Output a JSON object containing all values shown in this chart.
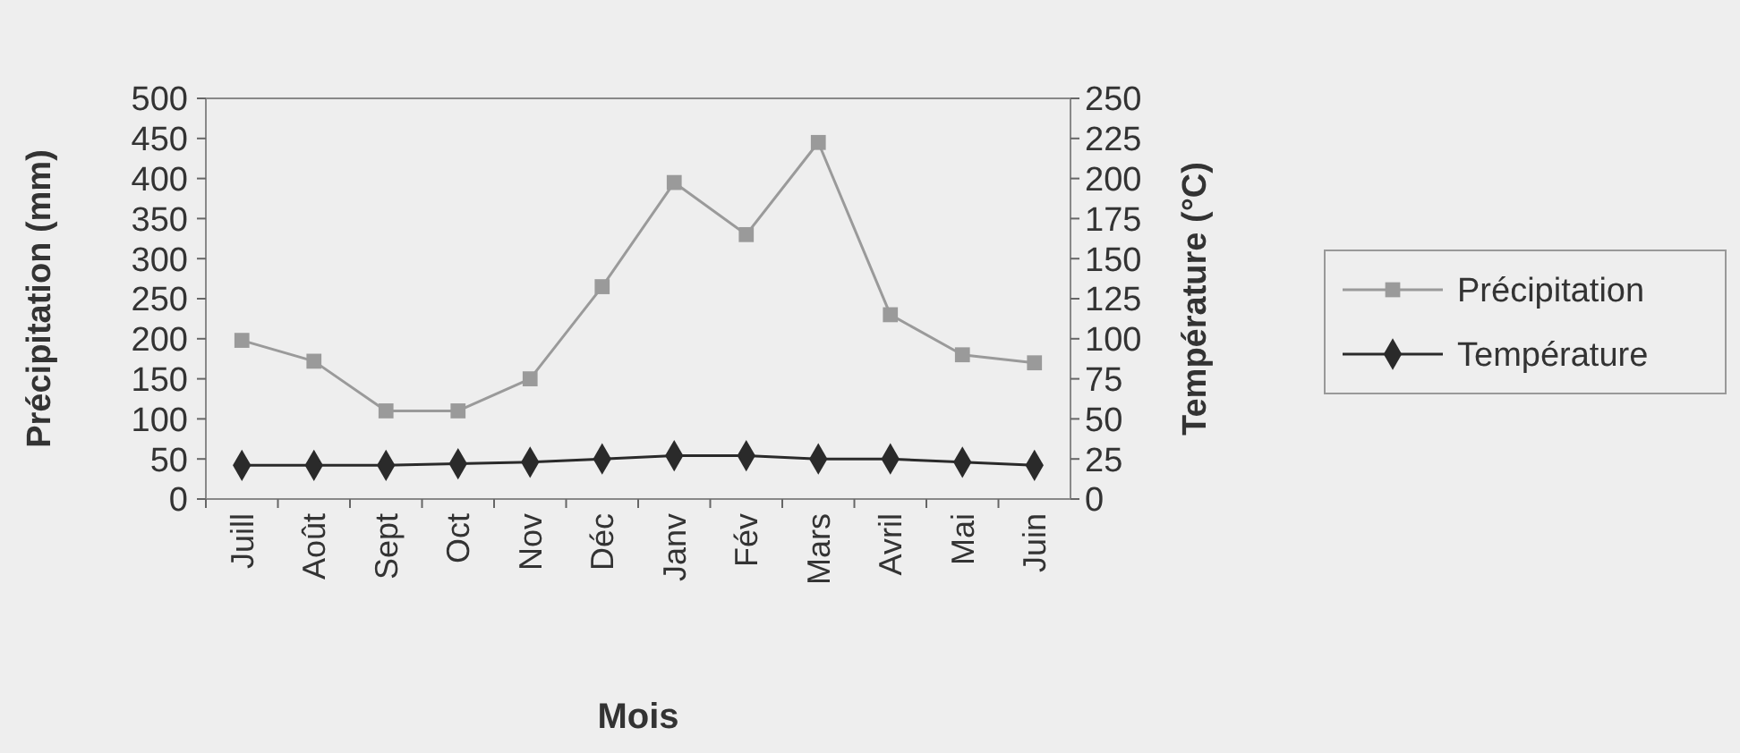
{
  "chart_data": {
    "type": "line",
    "xlabel": "Mois",
    "ylabel": "Précipitation (mm)",
    "y2label": "Température (°C)",
    "categories": [
      "Juill",
      "Août",
      "Sept",
      "Oct",
      "Nov",
      "Déc",
      "Janv",
      "Fév",
      "Mars",
      "Avril",
      "Mai",
      "Juin"
    ],
    "series": [
      {
        "name": "Précipitation",
        "color": "#9a9a9a",
        "marker": "square",
        "values": [
          198,
          172,
          110,
          110,
          150,
          265,
          395,
          330,
          445,
          230,
          180,
          170
        ]
      },
      {
        "name": "Température",
        "color": "#2a2a2a",
        "marker": "diamond",
        "axis": "y2",
        "values": [
          21,
          21,
          21,
          22,
          23,
          25,
          27,
          27,
          25,
          25,
          23,
          21
        ]
      }
    ],
    "ylim": [
      0,
      500
    ],
    "yticks": [
      0,
      50,
      100,
      150,
      200,
      250,
      300,
      350,
      400,
      450,
      500
    ],
    "y2lim": [
      0,
      250
    ],
    "y2ticks": [
      0,
      25,
      50,
      75,
      100,
      125,
      150,
      175,
      200,
      225,
      250
    ],
    "legend": "right",
    "grid": false
  }
}
